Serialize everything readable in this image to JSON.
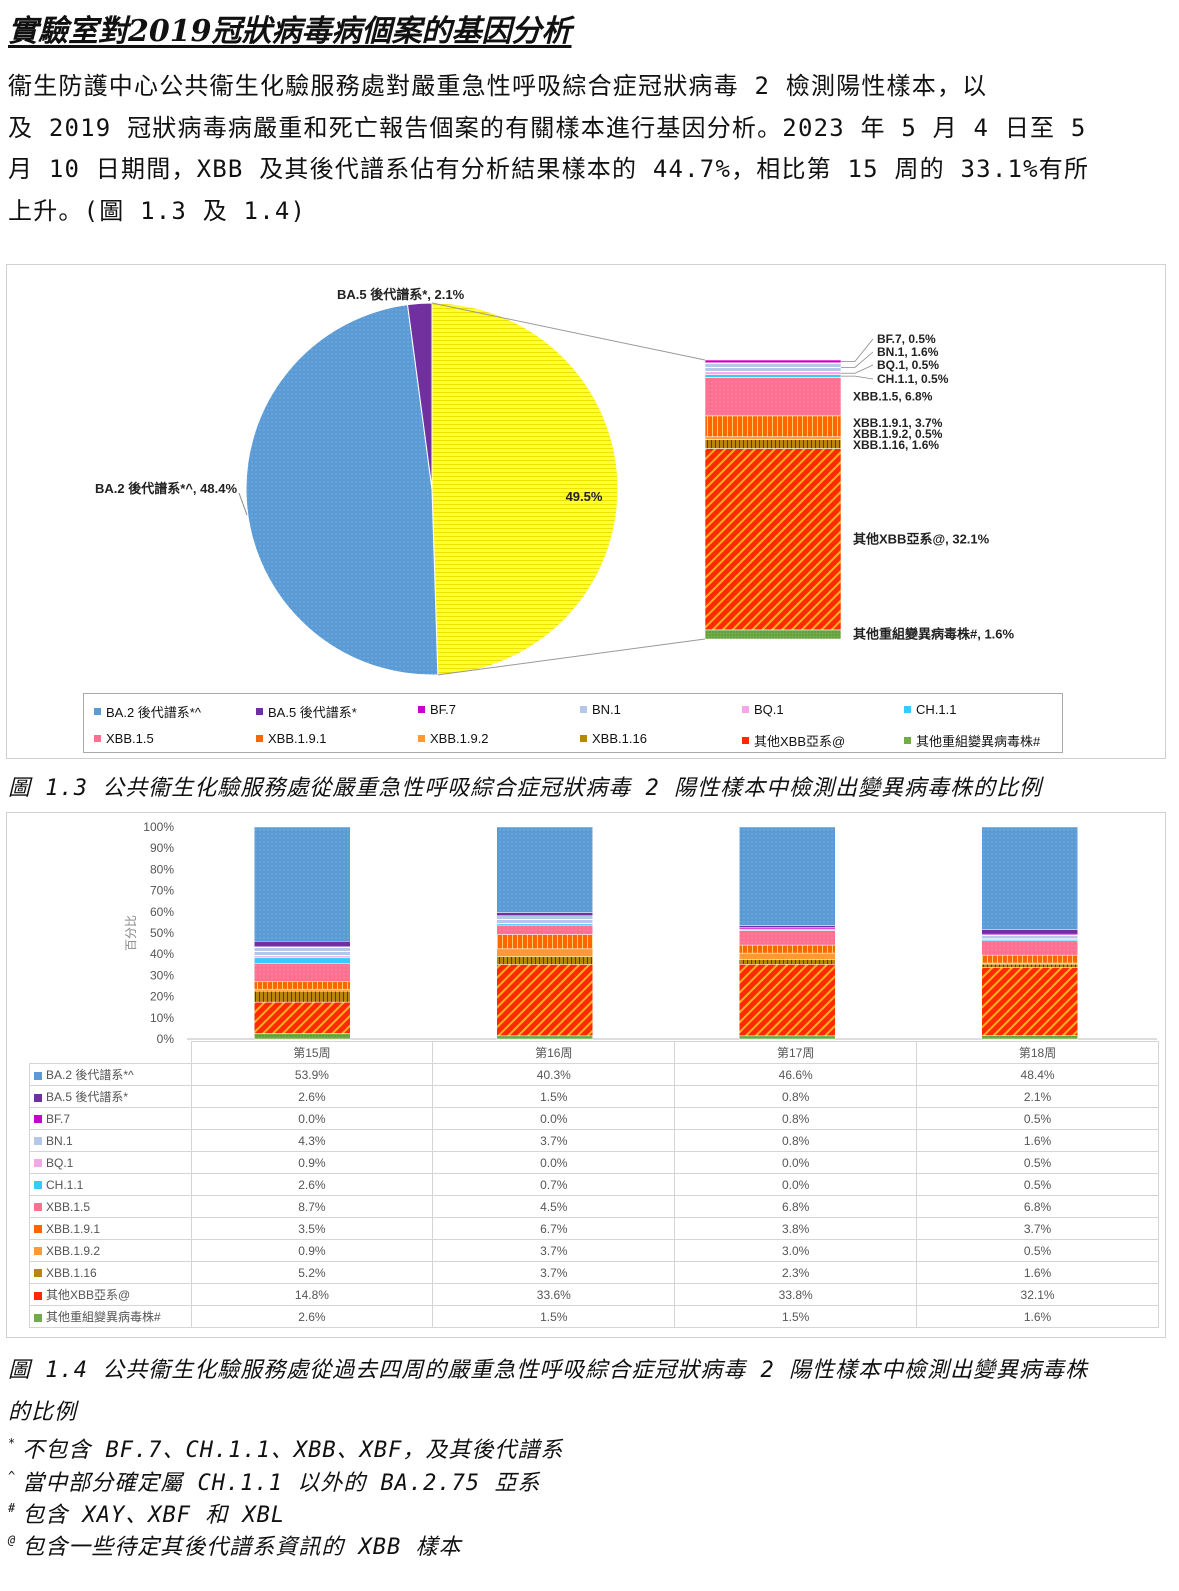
{
  "heading": "實驗室對2019冠狀病毒病個案的基因分析",
  "paragraph": [
    "衞生防護中心公共衞生化驗服務處對嚴重急性呼吸綜合症冠狀病毒 2 檢測陽性樣本，以",
    "及 2019 冠狀病毒病嚴重和死亡報告個案的有關樣本進行基因分析。2023 年 5 月 4 日至 5",
    "月 10 日期間，XBB 及其後代譜系佔有分析結果樣本的 44.7%，相比第 15 周的 33.1%有所",
    "上升。(圖 1.3 及 1.4)"
  ],
  "colors": {
    "BA.2": "#5b9bd5",
    "BA.5": "#7030a0",
    "BF.7": "#cc00cc",
    "BN.1": "#b4c7e7",
    "BQ.1": "#f4a6e8",
    "CH.1.1": "#33ccff",
    "XBB.1.5": "#ff6f91",
    "XBB.1.9.1": "#ff6600",
    "XBB.1.9.2": "#ff9933",
    "XBB.1.16": "#b8860b",
    "otherXBB": "#ff2a00",
    "otherRecomb": "#70ad47",
    "yellow": "#ffff33"
  },
  "fig13": {
    "pie_labels": {
      "ba5": "BA.5 後代譜系*, 2.1%",
      "ba2": "BA.2 後代譜系*^, 48.4%",
      "xbb_total": "49.5%"
    },
    "bar_labels": {
      "bf7": "BF.7, 0.5%",
      "bn1": "BN.1, 1.6%",
      "bq1": "BQ.1, 0.5%",
      "ch11": "CH.1.1, 0.5%",
      "xbb15": "XBB.1.5, 6.8%",
      "xbb191": "XBB.1.9.1, 3.7%",
      "xbb192": "XBB.1.9.2, 0.5%",
      "xbb116": "XBB.1.16, 1.6%",
      "other_xbb": "其他XBB亞系@, 32.1%",
      "other_recomb": "其他重組變異病毒株#, 1.6%"
    },
    "legend": [
      "BA.2 後代譜系*^",
      "BA.5 後代譜系*",
      "BF.7",
      "BN.1",
      "BQ.1",
      "CH.1.1",
      "XBB.1.5",
      "XBB.1.9.1",
      "XBB.1.9.2",
      "XBB.1.16",
      "其他XBB亞系@",
      "其他重組變異病毒株#"
    ],
    "caption": "圖 1.3 公共衞生化驗服務處從嚴重急性呼吸綜合症冠狀病毒 2 陽性樣本中檢測出變異病毒株的比例"
  },
  "chart_data": {
    "type": "bar",
    "stacked": true,
    "ylabel": "百分比",
    "ylim": [
      0,
      100
    ],
    "yticks": [
      "0%",
      "10%",
      "20%",
      "30%",
      "40%",
      "50%",
      "60%",
      "70%",
      "80%",
      "90%",
      "100%"
    ],
    "categories": [
      "第15周",
      "第16周",
      "第17周",
      "第18周"
    ],
    "series": [
      {
        "name": "其他重組變異病毒株#",
        "key": "otherRecomb",
        "values": [
          2.6,
          1.5,
          1.5,
          1.6
        ],
        "labels": [
          "2.6%",
          "1.5%",
          "1.5%",
          "1.6%"
        ]
      },
      {
        "name": "其他XBB亞系@",
        "key": "otherXBB",
        "values": [
          14.8,
          33.6,
          33.8,
          32.1
        ],
        "labels": [
          "14.8%",
          "33.6%",
          "33.8%",
          "32.1%"
        ]
      },
      {
        "name": "XBB.1.16",
        "key": "XBB.1.16",
        "values": [
          5.2,
          3.7,
          2.3,
          1.6
        ],
        "labels": [
          "5.2%",
          "3.7%",
          "2.3%",
          "1.6%"
        ]
      },
      {
        "name": "XBB.1.9.2",
        "key": "XBB.1.9.2",
        "values": [
          0.9,
          3.7,
          3.0,
          0.5
        ],
        "labels": [
          "0.9%",
          "3.7%",
          "3.0%",
          "0.5%"
        ]
      },
      {
        "name": "XBB.1.9.1",
        "key": "XBB.1.9.1",
        "values": [
          3.5,
          6.7,
          3.8,
          3.7
        ],
        "labels": [
          "3.5%",
          "6.7%",
          "3.8%",
          "3.7%"
        ]
      },
      {
        "name": "XBB.1.5",
        "key": "XBB.1.5",
        "values": [
          8.7,
          4.5,
          6.8,
          6.8
        ],
        "labels": [
          "8.7%",
          "4.5%",
          "6.8%",
          "6.8%"
        ]
      },
      {
        "name": "CH.1.1",
        "key": "CH.1.1",
        "values": [
          2.6,
          0.7,
          0.0,
          0.5
        ],
        "labels": [
          "2.6%",
          "0.7%",
          "0.0%",
          "0.5%"
        ]
      },
      {
        "name": "BQ.1",
        "key": "BQ.1",
        "values": [
          0.9,
          0.0,
          0.0,
          0.5
        ],
        "labels": [
          "0.9%",
          "0.0%",
          "0.0%",
          "0.5%"
        ]
      },
      {
        "name": "BN.1",
        "key": "BN.1",
        "values": [
          4.3,
          3.7,
          0.8,
          1.6
        ],
        "labels": [
          "4.3%",
          "3.7%",
          "0.8%",
          "1.6%"
        ]
      },
      {
        "name": "BF.7",
        "key": "BF.7",
        "values": [
          0.0,
          0.0,
          0.8,
          0.5
        ],
        "labels": [
          "0.0%",
          "0.0%",
          "0.8%",
          "0.5%"
        ]
      },
      {
        "name": "BA.5 後代譜系*",
        "key": "BA.5",
        "values": [
          2.6,
          1.5,
          0.8,
          2.1
        ],
        "labels": [
          "2.6%",
          "1.5%",
          "0.8%",
          "2.1%"
        ]
      },
      {
        "name": "BA.2 後代譜系*^",
        "key": "BA.2",
        "values": [
          53.9,
          40.3,
          46.6,
          48.4
        ],
        "labels": [
          "53.9%",
          "40.3%",
          "46.6%",
          "48.4%"
        ]
      }
    ]
  },
  "fig14": {
    "caption_line1": "圖 1.4 公共衞生化驗服務處從過去四周的嚴重急性呼吸綜合症冠狀病毒 2 陽性樣本中檢測出變異病毒株",
    "caption_line2": "的比例"
  },
  "footnotes": [
    {
      "mark": "*",
      "text": "不包含 BF.7、CH.1.1、XBB、XBF，及其後代譜系"
    },
    {
      "mark": "^",
      "text": "當中部分確定屬 CH.1.1 以外的 BA.2.75 亞系"
    },
    {
      "mark": "#",
      "text": "包含 XAY、XBF 和 XBL"
    },
    {
      "mark": "@",
      "text": "包含一些待定其後代譜系資訊的 XBB 樣本"
    }
  ]
}
